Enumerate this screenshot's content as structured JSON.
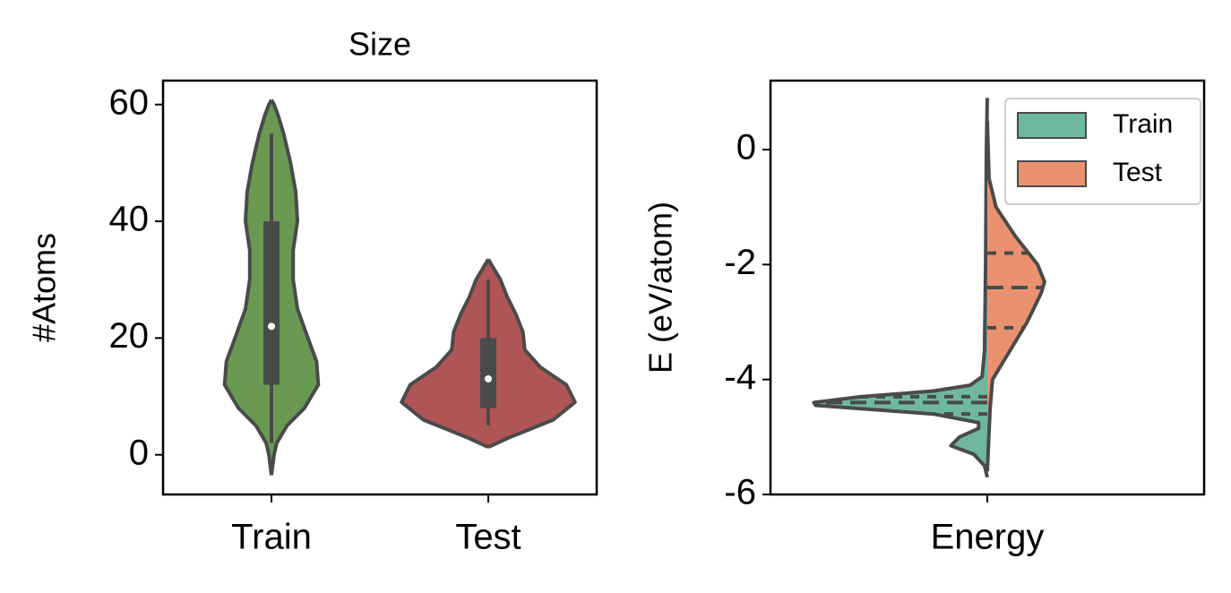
{
  "chart_data": [
    {
      "type": "violin",
      "title": "Size",
      "y_label": "#Atoms",
      "categories": [
        "Train",
        "Test"
      ],
      "ylim": [
        -6.8,
        64.1
      ],
      "yticks": [
        0,
        20,
        40,
        60
      ],
      "series": [
        {
          "name": "Train",
          "color": "#6a9a52",
          "y": [
            -3.5,
            0,
            2,
            5,
            8,
            12,
            16,
            20,
            25,
            30,
            35,
            40,
            45,
            50,
            55,
            58,
            60,
            60.8
          ],
          "density": [
            0,
            0.03,
            0.06,
            0.18,
            0.38,
            0.54,
            0.52,
            0.42,
            0.3,
            0.25,
            0.25,
            0.3,
            0.28,
            0.22,
            0.14,
            0.08,
            0.03,
            0
          ],
          "quartiles": [
            12,
            22,
            40
          ],
          "whiskers": [
            2,
            55
          ]
        },
        {
          "name": "Test",
          "color": "#b05555",
          "y": [
            1.3,
            3,
            6,
            9,
            12,
            15,
            18,
            21,
            24,
            27,
            30,
            32,
            33.5
          ],
          "density": [
            0,
            0.25,
            0.75,
            1,
            0.9,
            0.6,
            0.42,
            0.4,
            0.32,
            0.22,
            0.14,
            0.06,
            0
          ],
          "quartiles": [
            8,
            13,
            20
          ],
          "whiskers": [
            5,
            30
          ]
        }
      ]
    },
    {
      "type": "split-violin",
      "y_label": "E (eV/atom)",
      "categories": [
        "Energy"
      ],
      "ylim": [
        -6,
        1.2
      ],
      "yticks": [
        -6,
        -4,
        -2,
        0
      ],
      "legend": "upper right",
      "series": [
        {
          "name": "Train",
          "color": "#6fb89e",
          "y": [
            -5.7,
            -5.5,
            -5.3,
            -5.15,
            -5,
            -4.85,
            -4.75,
            -4.6,
            -4.45,
            -4.4,
            -4.3,
            -4.2,
            -4.1,
            -3.95,
            -3.5,
            -2,
            0,
            0.9
          ],
          "density": [
            0,
            0.016,
            0.078,
            0.21,
            0.16,
            0.05,
            0.05,
            0.31,
            0.99,
            1,
            0.73,
            0.31,
            0.1,
            0.03,
            0.016,
            0.01,
            0.005,
            0
          ],
          "quartiles": [
            -4.6,
            -4.4,
            -4.3
          ]
        },
        {
          "name": "Test",
          "color": "#ea9270",
          "y": [
            -5.6,
            -4.5,
            -4,
            -3.5,
            -3,
            -2.5,
            -2.3,
            -2,
            -1.5,
            -1,
            -0.5,
            0.5
          ],
          "density": [
            0,
            0.016,
            0.03,
            0.13,
            0.23,
            0.31,
            0.33,
            0.29,
            0.16,
            0.05,
            0.01,
            0
          ],
          "quartiles": [
            -3.1,
            -2.4,
            -1.8
          ]
        }
      ]
    }
  ]
}
